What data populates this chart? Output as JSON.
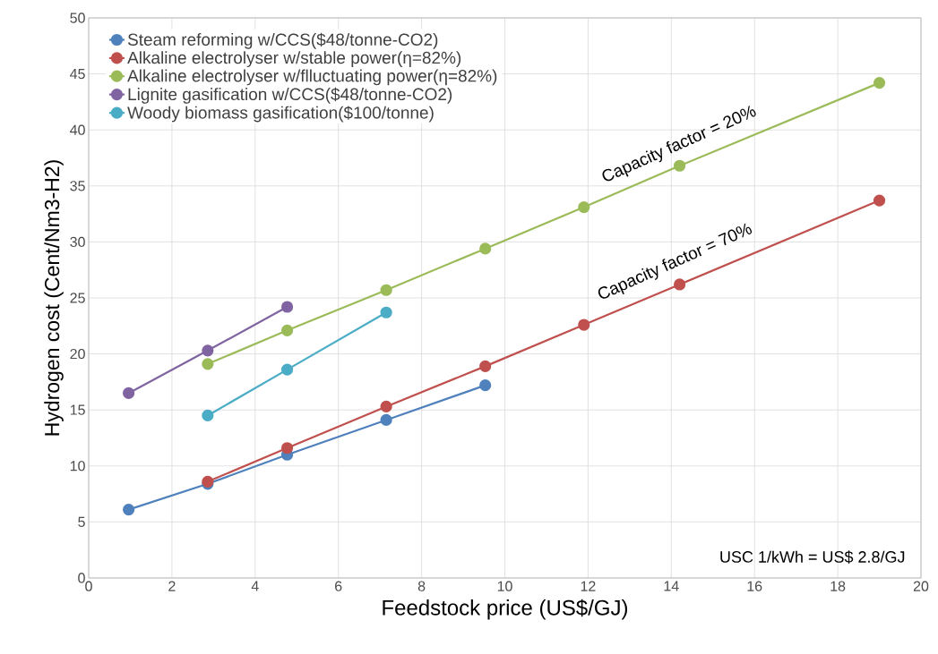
{
  "chart_data": {
    "type": "line",
    "xlabel": "Feedstock price (US$/GJ)",
    "ylabel": "Hydrogen cost  (Cent/Nm3-H2)",
    "xlim": [
      0,
      20
    ],
    "xticks": [
      0,
      2,
      4,
      6,
      8,
      10,
      12,
      14,
      16,
      18,
      20
    ],
    "ylim": [
      0,
      50
    ],
    "yticks": [
      0,
      5,
      10,
      15,
      20,
      25,
      30,
      35,
      40,
      45,
      50
    ],
    "grid": true,
    "legend": "top left",
    "marker": "circle",
    "line_style": "solid",
    "series": [
      {
        "name": "Steam reforming w/CCS($48/tonne-CO2)",
        "color": "#4f81bd",
        "x": [
          0.96,
          2.86,
          4.77,
          7.15,
          9.53
        ],
        "values": [
          6.1,
          8.4,
          11.0,
          14.1,
          17.2
        ]
      },
      {
        "name": "Alkaline electrolyser w/stable power(η=82%)",
        "color": "#c0504d",
        "x": [
          2.86,
          4.77,
          7.15,
          9.53,
          11.9,
          14.2,
          19.0
        ],
        "values": [
          8.6,
          11.6,
          15.3,
          18.9,
          22.6,
          26.2,
          33.7
        ]
      },
      {
        "name": "Alkaline electrolyser w/flluctuating power(η=82%)",
        "color": "#9bbb59",
        "x": [
          2.86,
          4.77,
          7.15,
          9.53,
          11.9,
          14.2,
          19.0
        ],
        "values": [
          19.1,
          22.1,
          25.7,
          29.4,
          33.1,
          36.8,
          44.2
        ]
      },
      {
        "name": "Lignite gasification w/CCS($48/tonne-CO2)",
        "color": "#8064a2",
        "x": [
          0.96,
          2.86,
          4.77
        ],
        "values": [
          16.5,
          20.3,
          24.2
        ]
      },
      {
        "name": "Woody biomass gasification($100/tonne)",
        "color": "#4bacc6",
        "x": [
          2.86,
          4.77,
          7.15
        ],
        "values": [
          14.5,
          18.6,
          23.7
        ]
      }
    ],
    "annotations": [
      "Capacity factor = 20%",
      "Capacity factor = 70%",
      "USC 1/kWh = US$ 2.8/GJ"
    ]
  }
}
